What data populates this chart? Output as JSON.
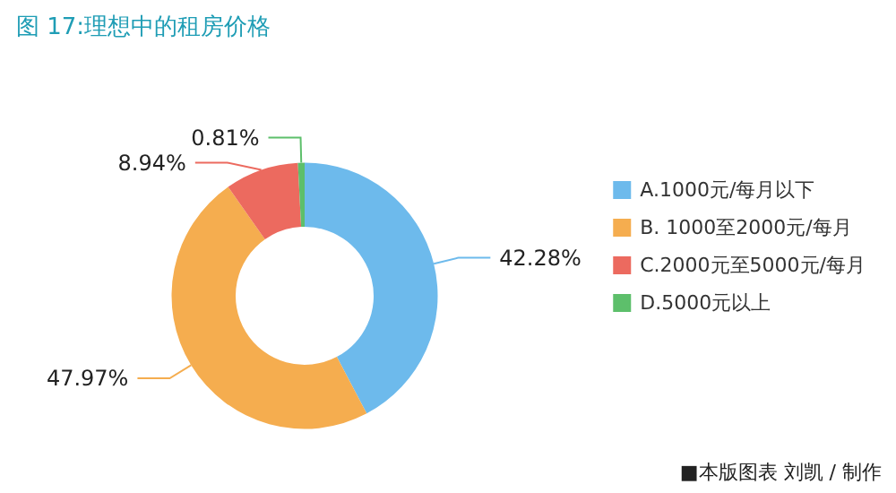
{
  "chart_data": {
    "type": "donut",
    "title": "图 17:理想中的租房价格",
    "categories": [
      "A.1000元/每月以下",
      "B. 1000至2000元/每月",
      "C.2000元至5000元/每月",
      "D.5000元以上"
    ],
    "values": [
      42.28,
      47.97,
      8.94,
      0.81
    ],
    "value_labels": [
      "42.28%",
      "47.97%",
      "8.94%",
      "0.81%"
    ],
    "colors": [
      "#6dbaec",
      "#f5ad4f",
      "#ec6a5f",
      "#5dbf6b"
    ],
    "legend": "right",
    "annotations": [
      "■本版图表 刘凯 / 制作"
    ]
  }
}
